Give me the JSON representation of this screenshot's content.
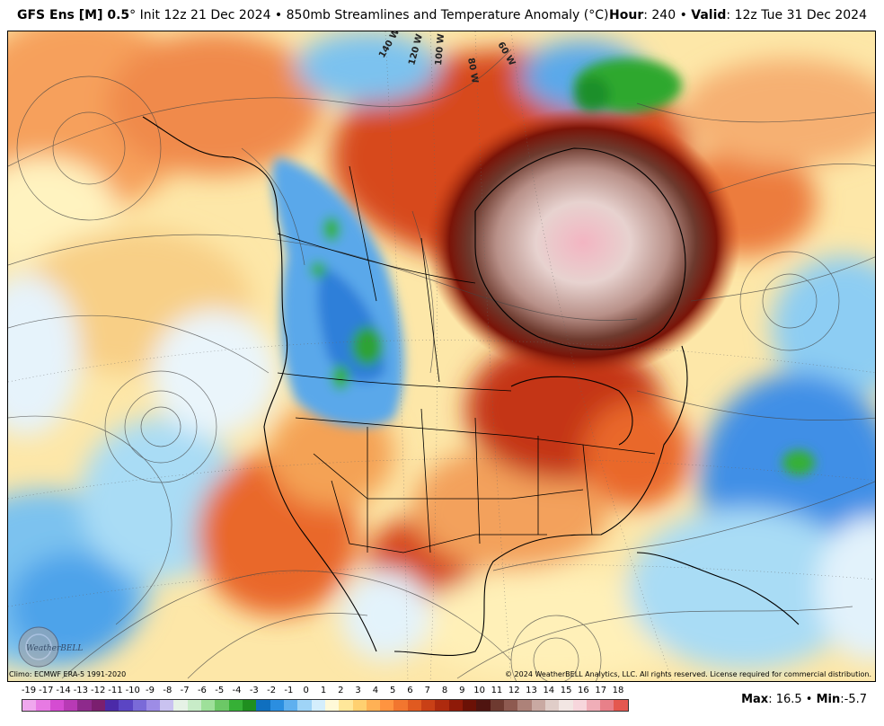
{
  "header": {
    "model": "GFS Ens [M] 0.5",
    "degree": "°",
    "init_text": " Init 12z 21 Dec 2024 • 850mb Streamlines and Temperature Anomaly (°C)",
    "hour_label": "Hour",
    "hour_value": ": 240 • ",
    "valid_label": "Valid",
    "valid_value": ": 12z Tue 31 Dec 2024"
  },
  "map": {
    "longitude_labels": [
      "140 W",
      "120 W",
      "100 W",
      "80 W",
      "60 W"
    ],
    "logo_text": "WeatherBELL"
  },
  "footer": {
    "climo": "Climo: ECMWF ERA-5 1991-2020",
    "copyright": "© 2024 WeatherBELL Analytics, LLC. All rights reserved. License required for commercial distribution."
  },
  "colorbar": {
    "ticks": [
      "-19",
      "-17",
      "-14",
      "-13",
      "-12",
      "-11",
      "-10",
      "-9",
      "-8",
      "-7",
      "-6",
      "-5",
      "-4",
      "-3",
      "-2",
      "-1",
      "0",
      "1",
      "2",
      "3",
      "4",
      "5",
      "6",
      "7",
      "8",
      "9",
      "10",
      "11",
      "12",
      "13",
      "14",
      "15",
      "16",
      "17",
      "18"
    ],
    "colors": [
      "#f0a8ee",
      "#e77ae3",
      "#d54cd2",
      "#b83ab5",
      "#8e2a8c",
      "#7b1f6f",
      "#4b2aa8",
      "#5b45c4",
      "#7a6ad8",
      "#9d8ce6",
      "#c9c2f0",
      "#e6f2e6",
      "#c8ecc8",
      "#9ee09a",
      "#6cc866",
      "#36b036",
      "#1f8f1f",
      "#0f6fbf",
      "#2b8ee0",
      "#5fb0ef",
      "#9fd4f7",
      "#d4eefc",
      "#fff9d8",
      "#ffe79a",
      "#ffd070",
      "#ffb155",
      "#ff9440",
      "#f2762f",
      "#e05a20",
      "#c94016",
      "#ae2a0e",
      "#8f1a08",
      "#6b1106",
      "#4f1410",
      "#6e3a30"
    ],
    "colors_warm_extra": [
      "#8e5a50",
      "#ad8279",
      "#c9a9a2",
      "#e0cdc8",
      "#f2e6e3",
      "#f7d6dc",
      "#f0aeb8",
      "#e88089",
      "#e4584f"
    ]
  },
  "stats": {
    "max_label": "Max",
    "max_value": ": 16.5 • ",
    "min_label": "Min",
    "min_value": ":-5.7"
  }
}
